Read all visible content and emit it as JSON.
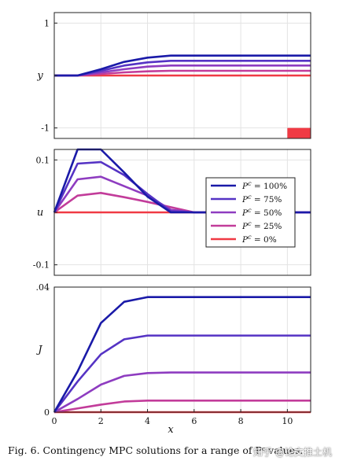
{
  "caption": {
    "label": "Fig. 6.",
    "text": "Contingency MPC solutions for a range of Pᶜ values."
  },
  "watermark": "知乎 @论文推土机",
  "chart_data": [
    {
      "type": "line",
      "ylabel": "y",
      "xlim": [
        0,
        11
      ],
      "ylim": [
        -1.2,
        1.2
      ],
      "yticks": [
        1,
        0,
        -1
      ],
      "ytick_labels": [
        "1",
        "",
        "-1"
      ],
      "x_ticks_shown": false,
      "grid": true,
      "x": [
        0,
        1,
        2,
        3,
        4,
        5,
        6,
        7,
        8,
        9,
        10,
        11
      ],
      "series": [
        {
          "name": "P^c = 100%",
          "color": "#1a1aa8",
          "values": [
            0,
            0,
            0.12,
            0.26,
            0.34,
            0.38,
            0.38,
            0.38,
            0.38,
            0.38,
            0.38,
            0.38
          ]
        },
        {
          "name": "P^c = 75%",
          "color": "#5533c4",
          "values": [
            0,
            0,
            0.09,
            0.19,
            0.25,
            0.28,
            0.28,
            0.28,
            0.28,
            0.28,
            0.28,
            0.28
          ]
        },
        {
          "name": "P^c = 50%",
          "color": "#8e3cc0",
          "values": [
            0,
            0,
            0.06,
            0.12,
            0.17,
            0.19,
            0.19,
            0.19,
            0.19,
            0.19,
            0.19,
            0.19
          ]
        },
        {
          "name": "P^c = 25%",
          "color": "#c23c9a",
          "values": [
            0,
            0,
            0.03,
            0.06,
            0.08,
            0.09,
            0.09,
            0.09,
            0.09,
            0.09,
            0.09,
            0.09
          ]
        },
        {
          "name": "P^c = 0%",
          "color": "#f03a44",
          "values": [
            0,
            0,
            0,
            0,
            0,
            0,
            0,
            0,
            0,
            0,
            0,
            0
          ]
        }
      ],
      "annotations": [
        {
          "kind": "filled-rect",
          "color": "#f03a44",
          "x_range": [
            10,
            11
          ],
          "y_range": [
            -1.2,
            -1.0
          ]
        }
      ]
    },
    {
      "type": "line",
      "ylabel": "u",
      "xlim": [
        0,
        11
      ],
      "ylim": [
        -0.12,
        0.12
      ],
      "yticks": [
        0.1,
        0,
        -0.1
      ],
      "ytick_labels": [
        "0.1",
        "",
        "-0.1"
      ],
      "x_ticks_shown": false,
      "grid": true,
      "legend_position": "right",
      "x": [
        0,
        1,
        2,
        3,
        4,
        5,
        6,
        7,
        8,
        9,
        10,
        11
      ],
      "series": [
        {
          "name": "P^c = 100%",
          "color": "#1a1aa8",
          "values": [
            0,
            0.12,
            0.12,
            0.076,
            0.03,
            0,
            0,
            0,
            0,
            0,
            0,
            0
          ]
        },
        {
          "name": "P^c = 75%",
          "color": "#5533c4",
          "values": [
            0,
            0.093,
            0.096,
            0.071,
            0.035,
            0.002,
            0,
            0,
            0,
            0,
            0,
            0
          ]
        },
        {
          "name": "P^c = 50%",
          "color": "#8e3cc0",
          "values": [
            0,
            0.063,
            0.068,
            0.05,
            0.032,
            0.005,
            0,
            0,
            0,
            0,
            0,
            0
          ]
        },
        {
          "name": "P^c = 25%",
          "color": "#c23c9a",
          "values": [
            0,
            0.032,
            0.037,
            0.029,
            0.02,
            0.01,
            0,
            0,
            0,
            0,
            0,
            0
          ]
        },
        {
          "name": "P^c = 0%",
          "color": "#f03a44",
          "values": [
            0,
            0,
            0,
            0,
            0,
            0,
            0,
            0,
            0,
            0,
            0,
            0
          ]
        }
      ]
    },
    {
      "type": "line",
      "xlabel": "x",
      "ylabel": "J",
      "xlim": [
        0,
        11
      ],
      "ylim": [
        0,
        0.04
      ],
      "yticks": [
        0.04,
        0
      ],
      "ytick_labels": [
        ".04",
        "0"
      ],
      "xticks": [
        0,
        2,
        4,
        6,
        8,
        10
      ],
      "grid": true,
      "x": [
        0,
        1,
        2,
        3,
        4,
        5,
        6,
        7,
        8,
        9,
        10,
        11
      ],
      "series": [
        {
          "name": "P^c = 100%",
          "color": "#1a1aa8",
          "values": [
            0,
            0.013,
            0.0285,
            0.0353,
            0.0368,
            0.0368,
            0.0368,
            0.0368,
            0.0368,
            0.0368,
            0.0368,
            0.0368
          ]
        },
        {
          "name": "P^c = 75%",
          "color": "#5533c4",
          "values": [
            0,
            0.0098,
            0.0185,
            0.0233,
            0.0245,
            0.0245,
            0.0245,
            0.0245,
            0.0245,
            0.0245,
            0.0245,
            0.0245
          ]
        },
        {
          "name": "P^c = 50%",
          "color": "#8e3cc0",
          "values": [
            0,
            0.0042,
            0.0088,
            0.0116,
            0.0125,
            0.0127,
            0.0127,
            0.0127,
            0.0127,
            0.0127,
            0.0127,
            0.0127
          ]
        },
        {
          "name": "P^c = 25%",
          "color": "#c23c9a",
          "values": [
            0,
            0.0012,
            0.0024,
            0.0034,
            0.0037,
            0.0037,
            0.0037,
            0.0037,
            0.0037,
            0.0037,
            0.0037,
            0.0037
          ]
        },
        {
          "name": "P^c = 0%",
          "color": "#f03a44",
          "values": [
            0,
            0,
            0,
            0,
            0,
            0,
            0,
            0,
            0,
            0,
            0,
            0
          ]
        }
      ]
    }
  ],
  "legend": [
    {
      "prefix": "P",
      "sup": "c",
      "suffix": " = 100%",
      "color": "#1a1aa8"
    },
    {
      "prefix": "P",
      "sup": "c",
      "suffix": " = 75%",
      "color": "#5533c4"
    },
    {
      "prefix": "P",
      "sup": "c",
      "suffix": " = 50%",
      "color": "#8e3cc0"
    },
    {
      "prefix": "P",
      "sup": "c",
      "suffix": " = 25%",
      "color": "#c23c9a"
    },
    {
      "prefix": "P",
      "sup": "c",
      "suffix": " = 0%",
      "color": "#f03a44"
    }
  ]
}
